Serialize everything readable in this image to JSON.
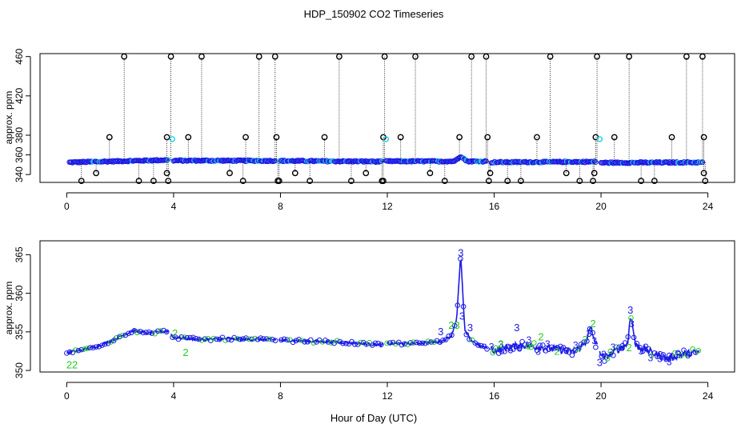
{
  "chart_data": [
    {
      "type": "scatter",
      "title": "HDP_150902  CO2 Timeseries",
      "xlabel": "",
      "ylabel": "approx. ppm",
      "xlim": [
        -1,
        25
      ],
      "ylim": [
        332,
        463
      ],
      "xticks": [
        "0",
        "4",
        "8",
        "12",
        "16",
        "20",
        "24"
      ],
      "yticks": [
        "340",
        "380",
        "420",
        "460"
      ],
      "yticks_minor": [
        "360"
      ],
      "baseline_segments": [
        {
          "x0": 0.1,
          "x1": 3.8,
          "y0": 352.4,
          "y1": 354.8
        },
        {
          "x0": 4.0,
          "x1": 7.8,
          "y0": 354.2,
          "y1": 354.0
        },
        {
          "x0": 7.95,
          "x1": 11.8,
          "y0": 353.9,
          "y1": 353.2
        },
        {
          "x0": 11.95,
          "x1": 15.7,
          "y0": 353.5,
          "y1": 353.4
        },
        {
          "x0": 15.9,
          "x1": 19.8,
          "y0": 352.5,
          "y1": 353.0
        },
        {
          "x0": 20.0,
          "x1": 23.8,
          "y0": 352.0,
          "y1": 352.4
        }
      ],
      "spikes_high": [
        2.15,
        3.9,
        5.05,
        7.2,
        7.8,
        10.2,
        11.9,
        13.05,
        15.15,
        15.7,
        18.1,
        19.85,
        21.05,
        23.2,
        23.8
      ],
      "spikes_mid": [
        1.6,
        3.75,
        4.55,
        6.7,
        7.85,
        9.65,
        11.85,
        12.5,
        14.7,
        15.75,
        17.6,
        19.8,
        20.5,
        22.65,
        23.85
      ],
      "spikes_low": [
        0.55,
        1.1,
        2.7,
        3.25,
        3.75,
        3.8,
        6.6,
        6.1,
        7.9,
        7.95,
        8.55,
        9.1,
        10.65,
        11.2,
        11.8,
        11.85,
        13.6,
        14.15,
        15.8,
        15.85,
        16.5,
        17.0,
        18.7,
        19.2,
        19.7,
        19.75,
        21.5,
        22.0,
        23.85,
        23.9
      ],
      "series": [
        {
          "name": "glyph o (blue)",
          "values": []
        },
        {
          "name": "glyph o (cyan)",
          "values": []
        }
      ]
    },
    {
      "type": "scatter",
      "title": "",
      "xlabel": "Hour of Day (UTC)",
      "ylabel": "approx. ppm",
      "xlim": [
        -1,
        25
      ],
      "ylim": [
        349.8,
        366.8
      ],
      "xticks": [
        "0",
        "4",
        "8",
        "12",
        "16",
        "20",
        "24"
      ],
      "yticks": [
        "350",
        "355",
        "360",
        "365"
      ],
      "profile": [
        [
          0.0,
          352.3
        ],
        [
          0.5,
          352.6
        ],
        [
          1.0,
          353.0
        ],
        [
          1.5,
          353.6
        ],
        [
          2.0,
          354.4
        ],
        [
          2.5,
          355.2
        ],
        [
          3.0,
          354.8
        ],
        [
          3.5,
          355.0
        ],
        [
          3.8,
          355.1
        ],
        [
          4.0,
          354.3
        ],
        [
          5.0,
          354.0
        ],
        [
          6.0,
          354.1
        ],
        [
          7.0,
          354.0
        ],
        [
          7.8,
          354.0
        ],
        [
          8.0,
          353.9
        ],
        [
          10.0,
          353.7
        ],
        [
          11.0,
          353.5
        ],
        [
          11.8,
          353.3
        ],
        [
          12.0,
          353.5
        ],
        [
          13.0,
          353.5
        ],
        [
          14.0,
          353.7
        ],
        [
          14.4,
          354.5
        ],
        [
          14.6,
          356.8
        ],
        [
          14.75,
          365.0
        ],
        [
          14.9,
          355.2
        ],
        [
          15.1,
          354.0
        ],
        [
          15.5,
          353.1
        ],
        [
          15.7,
          353.0
        ],
        [
          16.0,
          352.6
        ],
        [
          17.0,
          353.3
        ],
        [
          18.0,
          352.9
        ],
        [
          19.0,
          352.4
        ],
        [
          19.4,
          353.5
        ],
        [
          19.6,
          355.5
        ],
        [
          19.8,
          353.5
        ],
        [
          20.1,
          351.6
        ],
        [
          20.5,
          352.4
        ],
        [
          21.0,
          353.5
        ],
        [
          21.1,
          357.4
        ],
        [
          21.3,
          353.2
        ],
        [
          22.0,
          352.2
        ],
        [
          22.5,
          351.5
        ],
        [
          23.0,
          352.1
        ],
        [
          23.7,
          352.4
        ]
      ],
      "gaps": [
        3.85,
        7.9,
        11.9,
        15.8,
        19.9
      ],
      "labels_blue": [
        {
          "x": 14.75,
          "y": 365.2,
          "text": "3"
        },
        {
          "x": 21.1,
          "y": 357.8,
          "text": "3"
        },
        {
          "x": 14.8,
          "y": 357.0,
          "text": "3"
        },
        {
          "x": 15.1,
          "y": 355.5,
          "text": "3"
        },
        {
          "x": 16.85,
          "y": 355.5,
          "text": "3"
        },
        {
          "x": 19.55,
          "y": 354.8,
          "text": "3"
        },
        {
          "x": 19.95,
          "y": 351.0,
          "text": "3"
        },
        {
          "x": 14.0,
          "y": 355.0,
          "text": "3"
        }
      ],
      "labels_green": [
        {
          "x": 14.5,
          "y": 355.8,
          "text": "23"
        },
        {
          "x": 19.7,
          "y": 356.0,
          "text": "2"
        },
        {
          "x": 0.2,
          "y": 350.7,
          "text": "22"
        },
        {
          "x": 4.05,
          "y": 354.8,
          "text": "2"
        },
        {
          "x": 4.45,
          "y": 352.3,
          "text": "2"
        },
        {
          "x": 17.75,
          "y": 354.3,
          "text": "2"
        },
        {
          "x": 16.25,
          "y": 353.4,
          "text": "2"
        },
        {
          "x": 21.05,
          "y": 352.9,
          "text": "2"
        }
      ],
      "series": [
        {
          "name": "glyph o (blue)",
          "values": []
        },
        {
          "name": "glyph o (green)",
          "values": []
        }
      ]
    }
  ]
}
